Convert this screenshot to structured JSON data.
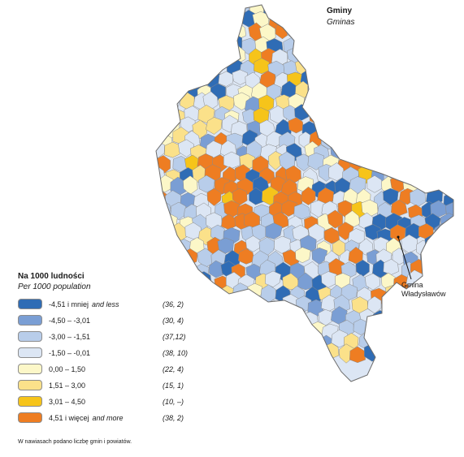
{
  "map": {
    "title": "Gminy",
    "subtitle": "Gminas",
    "callout_label_line1": "Gmina",
    "callout_label_line2": "Władysławów",
    "palette": {
      "c1": "#2f6cb5",
      "c2": "#7a9ed4",
      "c3": "#b8cdea",
      "c4": "#dce6f4",
      "c5": "#fcf7c8",
      "c6": "#fbe18a",
      "c7": "#f6c41a",
      "c8": "#ee7d22"
    },
    "boundary_color": "#8a8a8a"
  },
  "legend": {
    "title": "Na 1000 ludności",
    "subtitle": "Per 1000 population",
    "items": [
      {
        "label": "-4,51 i mniej",
        "label_en": "and less",
        "count": "(36, 2)",
        "color": "#2f6cb5"
      },
      {
        "label": "-4,50 – -3,01",
        "label_en": "",
        "count": "(30, 4)",
        "color": "#7a9ed4"
      },
      {
        "label": "-3,00 – -1,51",
        "label_en": "",
        "count": "(37,12)",
        "color": "#b8cdea"
      },
      {
        "label": "-1,50 – -0,01",
        "label_en": "",
        "count": "(38, 10)",
        "color": "#dce6f4"
      },
      {
        "label": "0,00 – 1,50",
        "label_en": "",
        "count": "(22, 4)",
        "color": "#fcf7c8"
      },
      {
        "label": "1,51 – 3,00",
        "label_en": "",
        "count": "(15, 1)",
        "color": "#fbe18a"
      },
      {
        "label": "3,01 – 4,50",
        "label_en": "",
        "count": "(10, –)",
        "color": "#f6c41a"
      },
      {
        "label": "4,51 i więcej",
        "label_en": "and more",
        "count": "(38, 2)",
        "color": "#ee7d22"
      }
    ]
  },
  "footnote": "W nawiasach podano liczbę gmin i powiatów."
}
